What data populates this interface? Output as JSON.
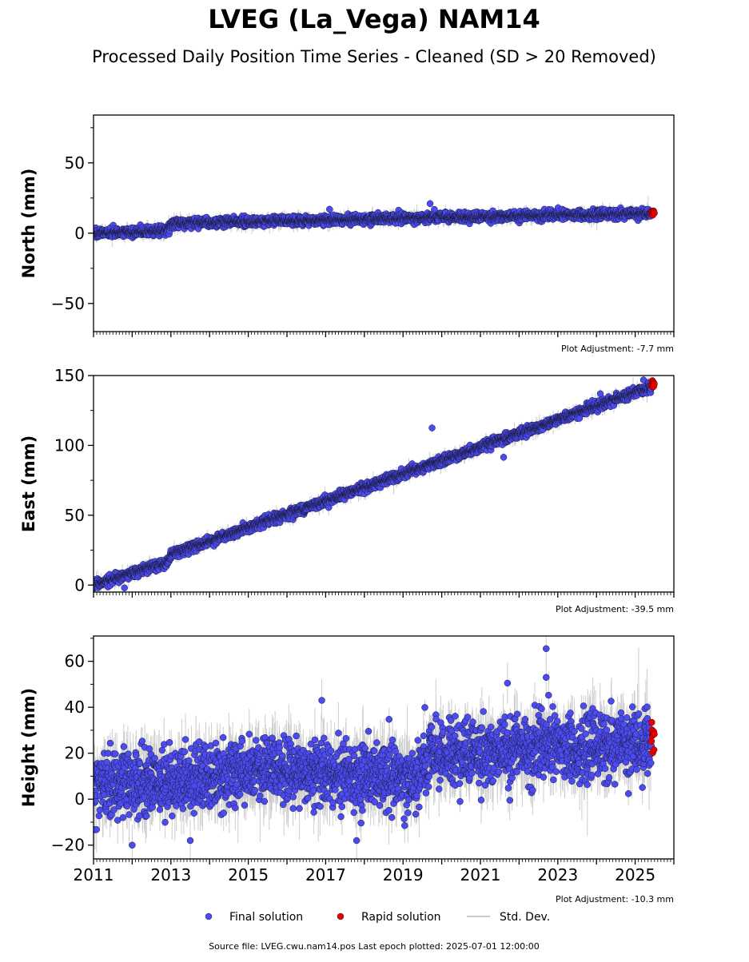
{
  "colors": {
    "final": "#4b4bf0",
    "final_edge": "#1a1a3a",
    "rapid": "#e80000",
    "rapid_edge": "#600000",
    "stddev": "#b8b8b8",
    "axis": "#000000"
  },
  "chart_data": {
    "type": "scatter",
    "title": "LVEG (La_Vega) NAM14",
    "subtitle": "Processed Daily Position Time Series - Cleaned (SD > 20 Removed)",
    "x_axis": {
      "range": [
        2011.0,
        2026.0
      ],
      "tick_labels": [
        "2011",
        "2013",
        "2015",
        "2017",
        "2019",
        "2021",
        "2023",
        "2025"
      ],
      "minor_ticks": "monthly"
    },
    "legend": {
      "placement": "bottom-center",
      "entries": [
        {
          "label": "Final solution",
          "marker": "circle",
          "color": "#4b4bf0"
        },
        {
          "label": "Rapid solution",
          "marker": "circle",
          "color": "#e80000"
        },
        {
          "label": "Std. Dev.",
          "marker": "line",
          "color": "#b8b8b8"
        }
      ]
    },
    "footer": "Source file: LVEG.cwu.nam14.pos  Last epoch plotted: 2025-07-01 12:00:00",
    "panels": [
      {
        "key": "north",
        "ylabel": "North (mm)",
        "ylim": [
          -70,
          84
        ],
        "y_ticks": [
          -50,
          0,
          50
        ],
        "y_tick_labels": [
          "−50",
          "0",
          "50"
        ],
        "adjustment": "Plot Adjustment: -7.7 mm",
        "final_series": {
          "name": "Final solution",
          "x_start": 2011.0,
          "x_end": 2025.42,
          "trend": [
            [
              2011.0,
              0.0
            ],
            [
              2012.9,
              2.0
            ],
            [
              2013.0,
              7.0
            ],
            [
              2019.5,
              11.0
            ],
            [
              2025.42,
              14.0
            ]
          ],
          "scatter_sd": 1.6,
          "err_sd": 2.0
        },
        "rapid_series": {
          "name": "Rapid solution",
          "x_start": 2025.42,
          "x_end": 2025.5,
          "trend": 15.5,
          "scatter_sd": 1.0
        },
        "outliers": [
          [
            2019.7,
            21.0
          ],
          [
            2017.1,
            17.0
          ]
        ]
      },
      {
        "key": "east",
        "ylabel": "East (mm)",
        "ylim": [
          -5,
          150
        ],
        "y_ticks": [
          0,
          50,
          100,
          150
        ],
        "y_tick_labels": [
          "0",
          "50",
          "100",
          "150"
        ],
        "adjustment": "Plot Adjustment: -39.5 mm",
        "final_series": {
          "name": "Final solution",
          "x_start": 2011.0,
          "x_end": 2025.42,
          "trend": [
            [
              2011.0,
              0.0
            ],
            [
              2012.9,
              16.0
            ],
            [
              2013.0,
              22.0
            ],
            [
              2019.7,
              86.0
            ],
            [
              2025.42,
              142.0
            ]
          ],
          "scatter_sd": 1.6,
          "err_sd": 2.2
        },
        "rapid_series": {
          "name": "Rapid solution",
          "x_start": 2025.42,
          "x_end": 2025.5,
          "trend": 144.0,
          "scatter_sd": 1.0
        },
        "outliers": [
          [
            2019.75,
            112.5
          ],
          [
            2021.6,
            91.5
          ],
          [
            2011.8,
            -2.0
          ],
          [
            2024.1,
            137.0
          ]
        ]
      },
      {
        "key": "height",
        "ylabel": "Height (mm)",
        "ylim": [
          -26,
          71
        ],
        "y_ticks": [
          -20,
          0,
          20,
          40,
          60
        ],
        "y_tick_labels": [
          "−20",
          "0",
          "20",
          "40",
          "60"
        ],
        "adjustment": "Plot Adjustment: -10.3 mm",
        "final_series": {
          "name": "Final solution",
          "x_start": 2011.0,
          "x_end": 2025.42,
          "trend": [
            [
              2011.0,
              6.0
            ],
            [
              2013.0,
              8.0
            ],
            [
              2016.0,
              13.0
            ],
            [
              2019.3,
              9.0
            ],
            [
              2019.8,
              20.0
            ],
            [
              2025.42,
              24.0
            ]
          ],
          "scatter_sd": 7.0,
          "err_sd": 6.0
        },
        "rapid_series": {
          "name": "Rapid solution",
          "x_start": 2025.42,
          "x_end": 2025.5,
          "trend": 26.0,
          "scatter_sd": 5.5
        },
        "outliers": [
          [
            2022.7,
            65.5
          ],
          [
            2022.7,
            53.0
          ],
          [
            2021.7,
            50.5
          ],
          [
            2016.9,
            43.0
          ],
          [
            2012.0,
            -20.0
          ],
          [
            2013.5,
            -18.0
          ],
          [
            2017.8,
            -18.0
          ]
        ]
      }
    ]
  }
}
